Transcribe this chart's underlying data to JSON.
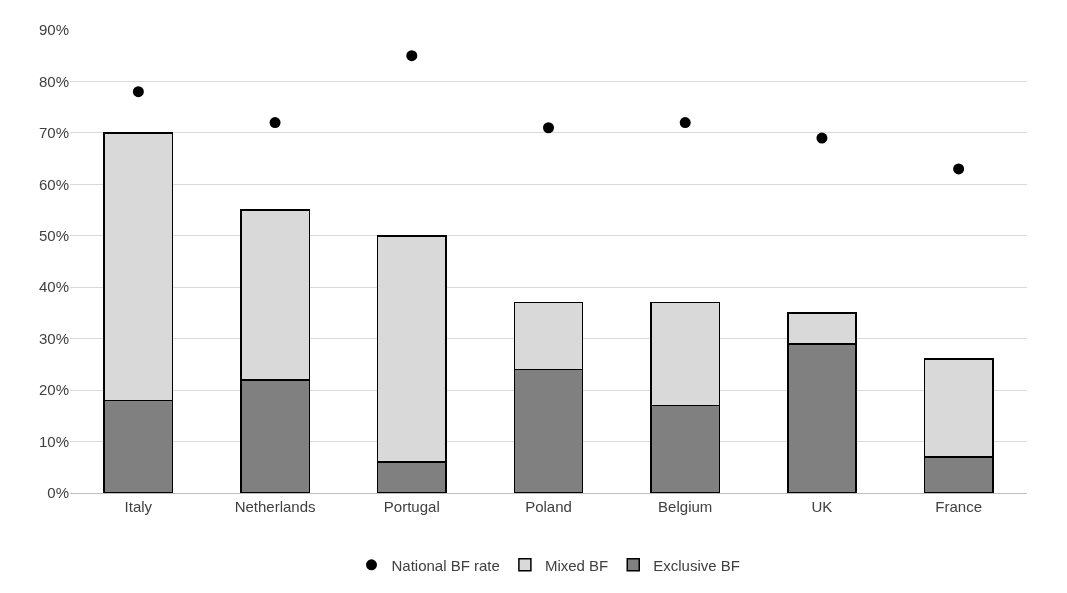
{
  "chart_data": {
    "type": "bar",
    "stacked": true,
    "categories": [
      "Italy",
      "Netherlands",
      "Portugal",
      "Poland",
      "Belgium",
      "UK",
      "France"
    ],
    "series": [
      {
        "name": "Exclusive BF",
        "color": "#808080",
        "values": [
          18,
          22,
          6,
          24,
          17,
          29,
          7
        ]
      },
      {
        "name": "Mixed BF",
        "color": "#d9d9d9",
        "values": [
          52,
          33,
          44,
          13,
          20,
          6,
          19
        ]
      },
      {
        "name": "National BF rate",
        "type": "scatter",
        "color": "#000000",
        "values": [
          78,
          72,
          85,
          71,
          72,
          69,
          63
        ]
      }
    ],
    "ylim": [
      0,
      90
    ],
    "yticks": [
      {
        "value": 0,
        "label": "0%"
      },
      {
        "value": 10,
        "label": "10%"
      },
      {
        "value": 20,
        "label": "20%"
      },
      {
        "value": 30,
        "label": "30%"
      },
      {
        "value": 40,
        "label": "40%"
      },
      {
        "value": 50,
        "label": "50%"
      },
      {
        "value": 60,
        "label": "60%"
      },
      {
        "value": 70,
        "label": "70%"
      },
      {
        "value": 80,
        "label": "80%"
      },
      {
        "value": 90,
        "label": "90%"
      }
    ],
    "grid": "y",
    "legend": "bottom",
    "marker": "circle"
  }
}
